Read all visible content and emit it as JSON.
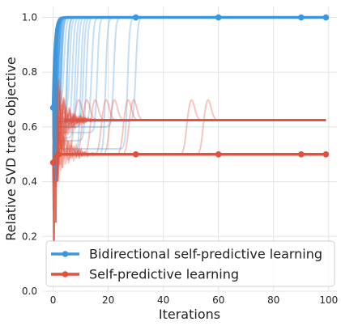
{
  "chart_data": {
    "type": "line",
    "title": "",
    "xlabel": "Iterations",
    "ylabel": "Relative SVD trace objective",
    "xlim": [
      -4,
      103
    ],
    "ylim": [
      0.0,
      1.04
    ],
    "x_ticks": [
      0,
      20,
      40,
      60,
      80,
      100
    ],
    "y_ticks": [
      0.0,
      0.2,
      0.4,
      0.6,
      0.8,
      1.0
    ],
    "x_tick_labels": [
      "0",
      "20",
      "40",
      "60",
      "80",
      "100"
    ],
    "y_tick_labels": [
      "0.0",
      "0.2",
      "0.4",
      "0.6",
      "0.8",
      "1.0"
    ],
    "grid": true,
    "legend_position": "lower-left",
    "series": [
      {
        "name": "Bidirectional self-predictive learning",
        "color": "#3a96dd",
        "mean": {
          "x": [
            0,
            30,
            60,
            90,
            99
          ],
          "y": [
            0.67,
            1.0,
            1.0,
            1.0,
            1.0
          ]
        },
        "trial_jump_iterations": [
          1,
          2,
          2,
          3,
          3,
          4,
          5,
          5,
          6,
          7,
          8,
          9,
          10,
          11,
          12,
          14,
          16,
          19,
          22,
          27,
          30
        ],
        "trial_start_values": [
          0.6,
          0.5,
          0.7,
          0.55,
          0.62,
          0.68,
          0.58,
          0.52,
          0.65,
          0.6,
          0.56,
          0.63,
          0.5,
          0.6,
          0.55,
          0.62,
          0.58,
          0.5,
          0.6,
          0.52,
          0.62
        ],
        "final_value": 1.0
      },
      {
        "name": "Self-predictive learning",
        "color": "#e2513d",
        "mean": {
          "x": [
            0,
            2,
            30,
            60,
            90,
            99
          ],
          "y": [
            0.47,
            0.5,
            0.5,
            0.5,
            0.5,
            0.5
          ]
        },
        "trial_bump_iterations": [
          6,
          9,
          12,
          16,
          19,
          24,
          26,
          47,
          53
        ],
        "levels": [
          0.5,
          0.625
        ],
        "final_value": 0.5
      }
    ]
  }
}
